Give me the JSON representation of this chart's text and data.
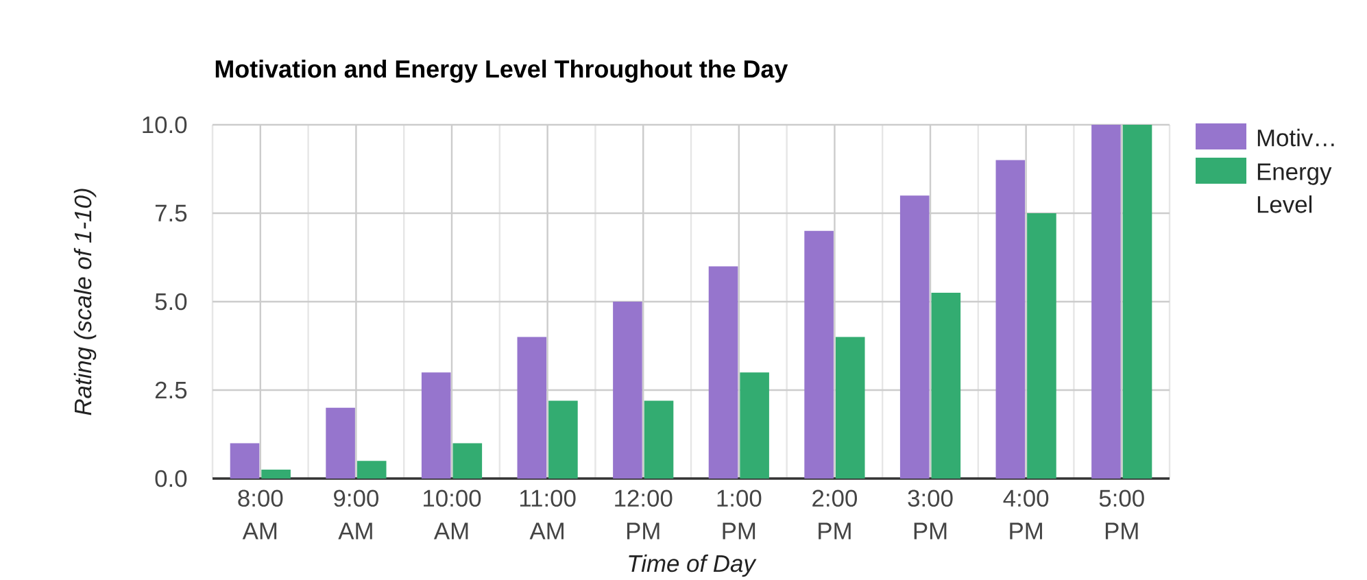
{
  "chart_data": {
    "type": "bar",
    "title": "Motivation and Energy Level Throughout the Day",
    "xlabel": "Time of Day",
    "ylabel": "Rating (scale of 1-10)",
    "categories": [
      "8:00 AM",
      "9:00 AM",
      "10:00 AM",
      "11:00 AM",
      "12:00 PM",
      "1:00 PM",
      "2:00 PM",
      "3:00 PM",
      "4:00 PM",
      "5:00 PM"
    ],
    "series": [
      {
        "name": "Motiv…",
        "color": "#9675cd",
        "values": [
          1,
          2,
          3,
          4,
          5,
          6,
          7,
          8,
          9,
          10
        ]
      },
      {
        "name": "Energy Level",
        "color": "#33ac71",
        "values": [
          0.25,
          0.5,
          1,
          2.2,
          2.2,
          3,
          4,
          5.25,
          7.5,
          10
        ]
      }
    ],
    "ylim": [
      0,
      10
    ],
    "yticks": [
      {
        "value": 0,
        "label": "0.0"
      },
      {
        "value": 2.5,
        "label": "2.5"
      },
      {
        "value": 5,
        "label": "5.0"
      },
      {
        "value": 7.5,
        "label": "7.5"
      },
      {
        "value": 10,
        "label": "10.0"
      }
    ],
    "grid": true,
    "legend": "right"
  }
}
